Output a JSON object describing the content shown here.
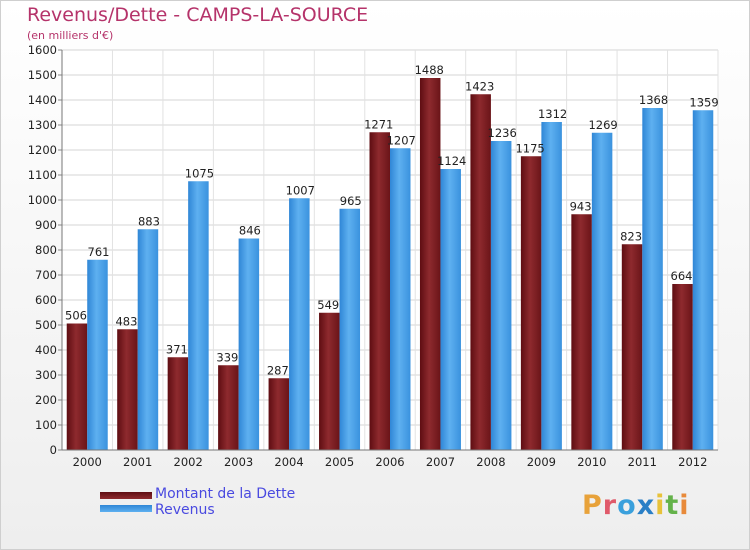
{
  "header": {
    "title": "Revenus/Dette - CAMPS-LA-SOURCE",
    "subtitle": "(en milliers d'€)"
  },
  "logo": {
    "text": "Proxiti"
  },
  "chart_data": {
    "type": "bar",
    "categories": [
      "2000",
      "2001",
      "2002",
      "2003",
      "2004",
      "2005",
      "2006",
      "2007",
      "2008",
      "2009",
      "2010",
      "2011",
      "2012"
    ],
    "series": [
      {
        "name": "Montant de la Dette",
        "color": "#7a1a1e",
        "values": [
          506,
          483,
          371,
          339,
          287,
          549,
          1271,
          1488,
          1423,
          1175,
          943,
          823,
          664
        ]
      },
      {
        "name": "Revenus",
        "color": "#3d97e0",
        "values": [
          761,
          883,
          1075,
          846,
          1007,
          965,
          1207,
          1124,
          1236,
          1312,
          1269,
          1368,
          1359
        ]
      }
    ],
    "ylim": [
      0,
      1600
    ],
    "yticks": [
      0,
      100,
      200,
      300,
      400,
      500,
      600,
      700,
      800,
      900,
      1000,
      1100,
      1200,
      1300,
      1400,
      1500,
      1600
    ],
    "grid": true,
    "legend_position": "bottom-left"
  }
}
